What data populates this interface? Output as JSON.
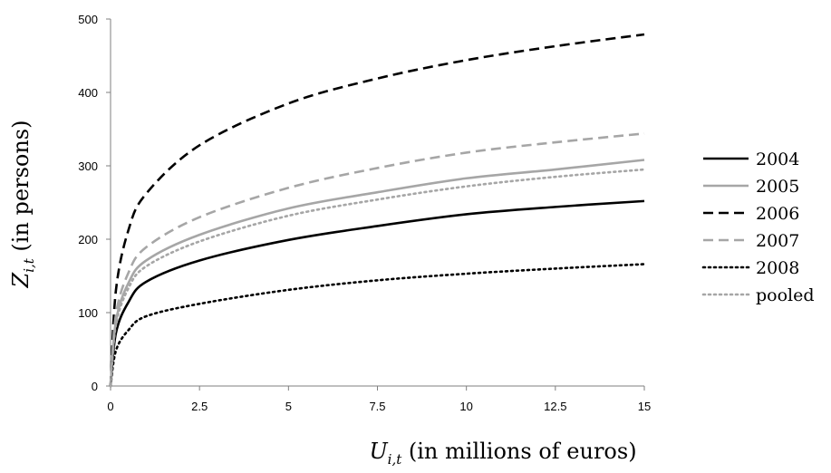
{
  "chart_data": {
    "type": "line",
    "title": "",
    "xlabel_main": "U",
    "xlabel_sub": "i,t",
    "xlabel_rest": " (in millions of euros)",
    "ylabel_main": "Z",
    "ylabel_sub": "i,t",
    "ylabel_rest": " (in persons)",
    "xlim": [
      0,
      15
    ],
    "ylim": [
      0,
      500
    ],
    "xticks": [
      "0",
      "2.5",
      "5",
      "7.5",
      "10",
      "12.5",
      "15"
    ],
    "yticks": [
      "0",
      "100",
      "200",
      "300",
      "400",
      "500"
    ],
    "grid": false,
    "legend_position": "right",
    "x": [
      0.0,
      0.15,
      0.5,
      1.0,
      2.5,
      5.0,
      7.5,
      10.0,
      12.5,
      15.0
    ],
    "series": [
      {
        "name": "2004",
        "color": "#000000",
        "dash": "solid",
        "values": [
          0,
          72,
          114,
          142,
          171,
          199,
          218,
          234,
          244,
          252
        ]
      },
      {
        "name": "2005",
        "color": "#a6a6a6",
        "dash": "solid",
        "values": [
          0,
          88,
          140,
          171,
          206,
          242,
          264,
          283,
          295,
          308
        ]
      },
      {
        "name": "2006",
        "color": "#000000",
        "dash": "dashed",
        "values": [
          0,
          130,
          212,
          262,
          328,
          385,
          419,
          444,
          463,
          479
        ]
      },
      {
        "name": "2007",
        "color": "#a6a6a6",
        "dash": "dashed",
        "values": [
          0,
          97,
          154,
          189,
          230,
          270,
          297,
          318,
          332,
          344
        ]
      },
      {
        "name": "2008",
        "color": "#000000",
        "dash": "dotted",
        "values": [
          0,
          48,
          76,
          95,
          112,
          131,
          144,
          153,
          160,
          166
        ]
      },
      {
        "name": "pooled",
        "color": "#a6a6a6",
        "dash": "dotted",
        "values": [
          0,
          83,
          133,
          163,
          197,
          232,
          254,
          272,
          285,
          295
        ]
      }
    ]
  }
}
